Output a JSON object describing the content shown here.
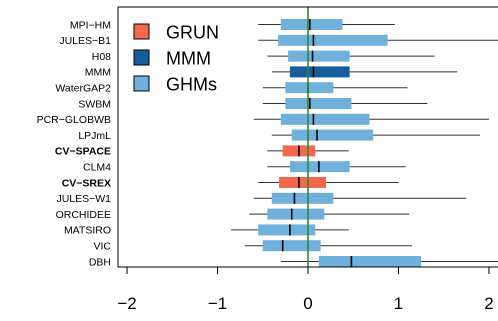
{
  "chart_data": {
    "type": "boxplot",
    "title": "",
    "xlabel": "",
    "ylabel": "",
    "xlim": [
      -2.1,
      2.1
    ],
    "xticks": [
      -2,
      -1,
      0,
      1,
      2
    ],
    "xtick_labels": [
      "−2",
      "−1",
      "0",
      "1",
      "2"
    ],
    "reference_line_x": 0,
    "legend": {
      "position": "top-left",
      "entries": [
        {
          "label": "GRUN",
          "color": "#f4694e"
        },
        {
          "label": "MMM",
          "color": "#165d9c"
        },
        {
          "label": "GHMs",
          "color": "#6fb1dc"
        }
      ]
    },
    "rows": [
      {
        "name": "MPI−HM",
        "bold": false,
        "group": "GHMs",
        "whisker_low": -0.55,
        "q1": -0.3,
        "median": 0.02,
        "q3": 0.38,
        "whisker_high": 0.96
      },
      {
        "name": "JULES−B1",
        "bold": false,
        "group": "GHMs",
        "whisker_low": -0.55,
        "q1": -0.33,
        "median": 0.06,
        "q3": 0.88,
        "whisker_high": 2.15
      },
      {
        "name": "H08",
        "bold": false,
        "group": "GHMs",
        "whisker_low": -0.45,
        "q1": -0.22,
        "median": 0.05,
        "q3": 0.46,
        "whisker_high": 1.4
      },
      {
        "name": "MMM",
        "bold": false,
        "group": "MMM",
        "whisker_low": -0.4,
        "q1": -0.2,
        "median": 0.06,
        "q3": 0.46,
        "whisker_high": 1.65
      },
      {
        "name": "WaterGAP2",
        "bold": false,
        "group": "GHMs",
        "whisker_low": -0.5,
        "q1": -0.25,
        "median": 0.0,
        "q3": 0.28,
        "whisker_high": 1.1
      },
      {
        "name": "SWBM",
        "bold": false,
        "group": "GHMs",
        "whisker_low": -0.5,
        "q1": -0.25,
        "median": 0.02,
        "q3": 0.48,
        "whisker_high": 1.32
      },
      {
        "name": "PCR−GLOBWB",
        "bold": false,
        "group": "GHMs",
        "whisker_low": -0.6,
        "q1": -0.3,
        "median": 0.06,
        "q3": 0.68,
        "whisker_high": 2.0
      },
      {
        "name": "LPJmL",
        "bold": false,
        "group": "GHMs",
        "whisker_low": -0.4,
        "q1": -0.18,
        "median": 0.1,
        "q3": 0.72,
        "whisker_high": 1.9
      },
      {
        "name": "CV−SPACE",
        "bold": true,
        "group": "GRUN",
        "whisker_low": -0.45,
        "q1": -0.28,
        "median": -0.1,
        "q3": 0.08,
        "whisker_high": 0.45
      },
      {
        "name": "CLM4",
        "bold": false,
        "group": "GHMs",
        "whisker_low": -0.45,
        "q1": -0.2,
        "median": 0.12,
        "q3": 0.46,
        "whisker_high": 1.08
      },
      {
        "name": "CV−SREX",
        "bold": true,
        "group": "GRUN",
        "whisker_low": -0.55,
        "q1": -0.32,
        "median": -0.1,
        "q3": 0.2,
        "whisker_high": 1.0
      },
      {
        "name": "JULES−W1",
        "bold": false,
        "group": "GHMs",
        "whisker_low": -0.6,
        "q1": -0.4,
        "median": -0.15,
        "q3": 0.28,
        "whisker_high": 1.75
      },
      {
        "name": "ORCHIDEE",
        "bold": false,
        "group": "GHMs",
        "whisker_low": -0.65,
        "q1": -0.45,
        "median": -0.18,
        "q3": 0.18,
        "whisker_high": 1.12
      },
      {
        "name": "MATSIRO",
        "bold": false,
        "group": "GHMs",
        "whisker_low": -0.85,
        "q1": -0.55,
        "median": -0.2,
        "q3": 0.08,
        "whisker_high": 0.45
      },
      {
        "name": "VIC",
        "bold": false,
        "group": "GHMs",
        "whisker_low": -0.7,
        "q1": -0.5,
        "median": -0.28,
        "q3": 0.14,
        "whisker_high": 1.15
      },
      {
        "name": "DBH",
        "bold": false,
        "group": "GHMs",
        "whisker_low": -0.3,
        "q1": 0.12,
        "median": 0.48,
        "q3": 1.25,
        "whisker_high": 2.15
      }
    ]
  }
}
